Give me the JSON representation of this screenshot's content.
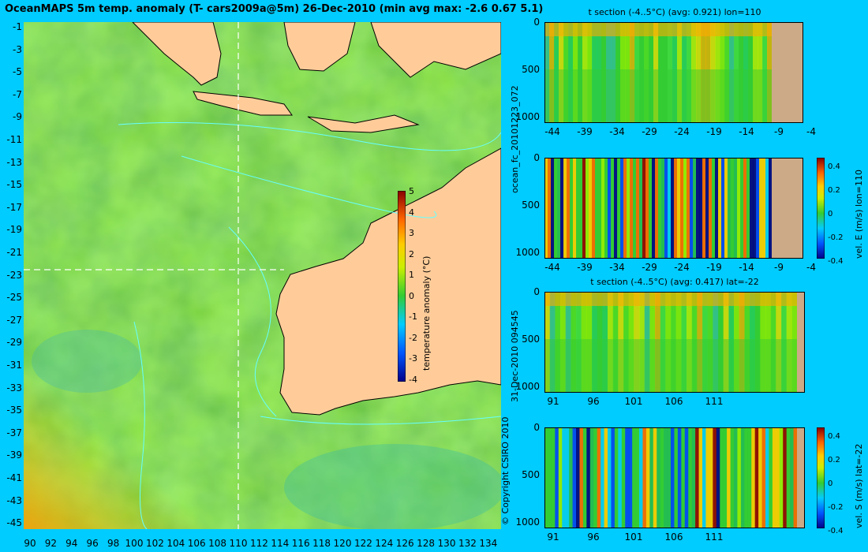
{
  "title": "OceanMAPS 5m temp. anomaly (T- cars2009a@5m) 26-Dec-2010 (min avg max: -2.6 0.67 5.1)",
  "map": {
    "lat_labels": [
      "-1",
      "-3",
      "-5",
      "-7",
      "-9",
      "-11",
      "-13",
      "-15",
      "-17",
      "-19",
      "-21",
      "-23",
      "-25",
      "-27",
      "-29",
      "-31",
      "-33",
      "-35",
      "-37",
      "-39",
      "-41",
      "-43",
      "-45"
    ],
    "lon_labels": [
      "90",
      "92",
      "94",
      "96",
      "98",
      "100",
      "102",
      "104",
      "106",
      "108",
      "110",
      "112",
      "114",
      "116",
      "118",
      "120",
      "122",
      "124",
      "126",
      "128",
      "130",
      "132",
      "134"
    ],
    "colorbar_ticks": [
      "5",
      "4",
      "3",
      "2",
      "1",
      "0",
      "-1",
      "-2",
      "-3",
      "-4"
    ],
    "colorbar_label": "temperature anomaly (°C)",
    "ocean_color": "#33cc33",
    "land_color": "#ffcc99"
  },
  "side_text": {
    "forecast_id": "ocean_fc_20101223_072",
    "timestamp": "31-Dec-2010 094545",
    "copyright": "© Copyright CSIRO 2010"
  },
  "sections": [
    {
      "title": "t section (-4..5°C) (avg: 0.921) lon=110",
      "y_ticks": [
        "0",
        "500",
        "1000"
      ],
      "x_ticks": [
        "-44",
        "-39",
        "-34",
        "-29",
        "-24",
        "-19",
        "-14",
        "-9",
        "-4"
      ],
      "cb_label": "",
      "cb_ticks": []
    },
    {
      "title": "",
      "y_ticks": [
        "0",
        "500",
        "1000"
      ],
      "x_ticks": [
        "-44",
        "-39",
        "-34",
        "-29",
        "-24",
        "-19",
        "-14",
        "-9",
        "-4"
      ],
      "cb_label": "vel. E (m/s) lon=110",
      "cb_ticks": [
        "0.4",
        "0.2",
        "0",
        "-0.2",
        "-0.4"
      ]
    },
    {
      "title": "t section (-4..5°C) (avg: 0.417) lat=-22",
      "y_ticks": [
        "0",
        "500",
        "1000"
      ],
      "x_ticks": [
        "91",
        "96",
        "101",
        "106",
        "111"
      ],
      "cb_label": "",
      "cb_ticks": []
    },
    {
      "title": "",
      "y_ticks": [
        "0",
        "500",
        "1000"
      ],
      "x_ticks": [
        "91",
        "96",
        "101",
        "106",
        "111"
      ],
      "cb_label": "vel. S (m/s) lat=-22",
      "cb_ticks": [
        "0.4",
        "0.2",
        "0",
        "-0.2",
        "-0.4"
      ]
    }
  ]
}
